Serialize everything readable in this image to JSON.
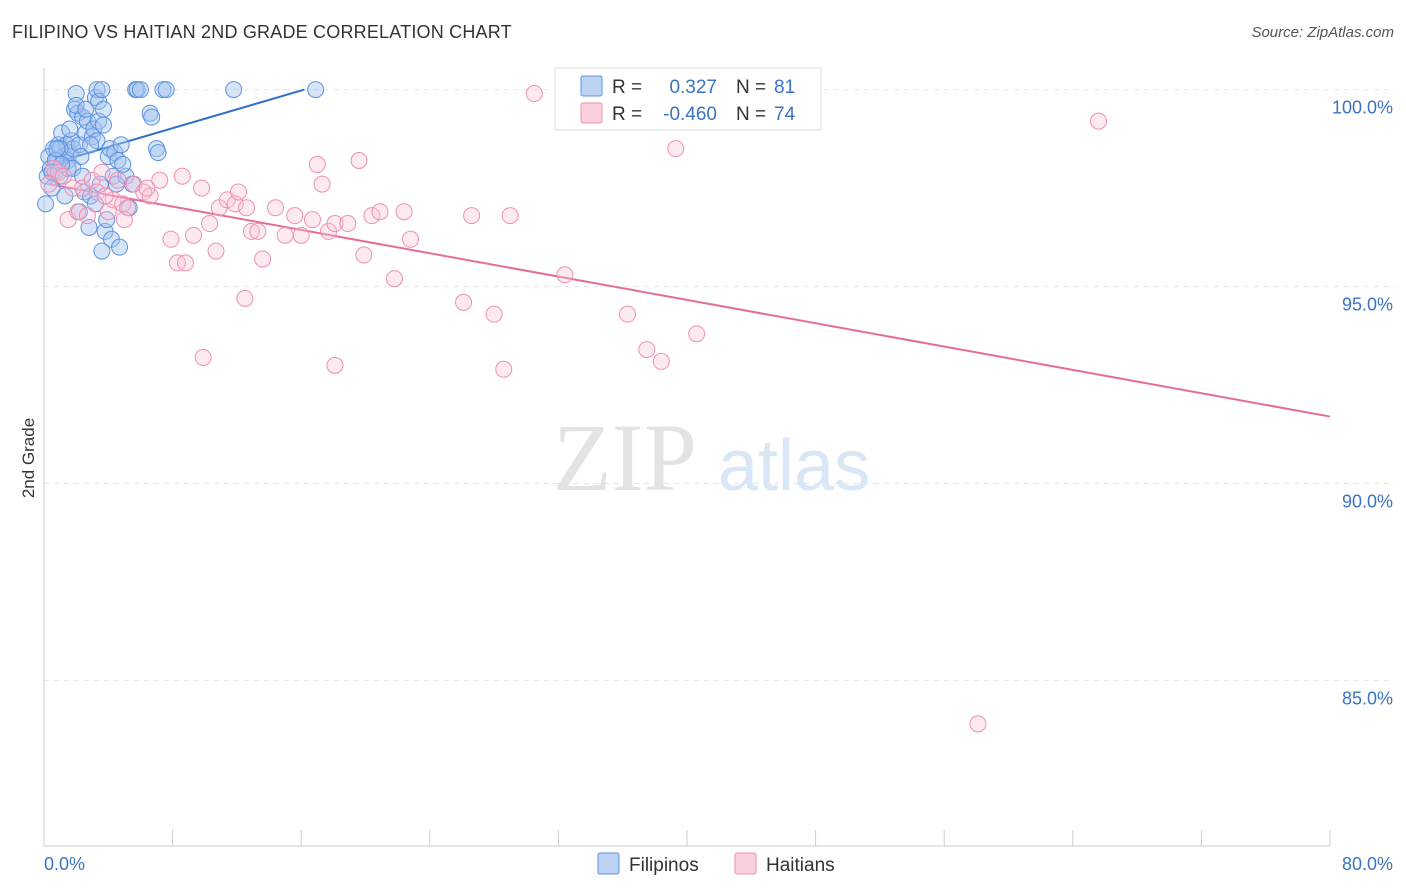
{
  "header": {
    "title": "FILIPINO VS HAITIAN 2ND GRADE CORRELATION CHART",
    "source": "Source: ZipAtlas.com"
  },
  "watermark": {
    "zip": "ZIP",
    "atlas": "atlas"
  },
  "colors": {
    "filipinos": "#5b93e0",
    "filipinos_line": "#2f6fcc",
    "haitians": "#ef8fb0",
    "haitians_line": "#e46d98",
    "tick_text": "#3b73c4"
  },
  "stats_legend": {
    "rows": [
      {
        "r_label": "R =",
        "r_value": "0.327",
        "n_label": "N =",
        "n_value": "81"
      },
      {
        "r_label": "R =",
        "r_value": "-0.460",
        "n_label": "N =",
        "n_value": "74"
      }
    ]
  },
  "chart_data": {
    "type": "scatter",
    "title": "FILIPINO VS HAITIAN 2ND GRADE CORRELATION CHART",
    "xlabel": "",
    "ylabel": "2nd Grade",
    "xlim": [
      0,
      80
    ],
    "ylim": [
      80.8,
      100.7
    ],
    "x_tick_labels": [
      "0.0%",
      "80.0%"
    ],
    "y_ticks": [
      100,
      95,
      90,
      85
    ],
    "y_tick_labels": [
      "100.0%",
      "95.0%",
      "90.0%",
      "85.0%"
    ],
    "grid": true,
    "legend_position": "bottom-center",
    "series": [
      {
        "name": "Filipinos",
        "r": 0.327,
        "n": 81,
        "trend": [
          [
            0.3,
            98.1
          ],
          [
            16.2,
            100.0
          ]
        ],
        "points": [
          [
            0.1,
            97.1
          ],
          [
            0.2,
            97.8
          ],
          [
            0.3,
            98.3
          ],
          [
            0.4,
            98.0
          ],
          [
            0.5,
            97.5
          ],
          [
            0.6,
            98.5
          ],
          [
            0.7,
            97.9
          ],
          [
            0.8,
            98.2
          ],
          [
            0.9,
            98.6
          ],
          [
            1.0,
            97.8
          ],
          [
            1.1,
            98.9
          ],
          [
            1.2,
            98.3
          ],
          [
            1.3,
            97.3
          ],
          [
            1.4,
            98.6
          ],
          [
            1.5,
            98.2
          ],
          [
            1.6,
            98.4
          ],
          [
            1.7,
            98.7
          ],
          [
            1.8,
            98.5
          ],
          [
            1.9,
            99.5
          ],
          [
            2.0,
            99.9
          ],
          [
            2.1,
            99.4
          ],
          [
            2.2,
            98.6
          ],
          [
            2.3,
            98.3
          ],
          [
            2.4,
            99.3
          ],
          [
            2.5,
            97.4
          ],
          [
            2.6,
            98.9
          ],
          [
            2.7,
            99.2
          ],
          [
            2.8,
            96.5
          ],
          [
            2.9,
            97.3
          ],
          [
            3.0,
            98.8
          ],
          [
            3.1,
            99.0
          ],
          [
            3.2,
            99.8
          ],
          [
            3.3,
            98.7
          ],
          [
            3.4,
            99.2
          ],
          [
            3.5,
            97.6
          ],
          [
            3.6,
            95.9
          ],
          [
            3.7,
            99.1
          ],
          [
            3.8,
            96.4
          ],
          [
            3.9,
            96.7
          ],
          [
            4.0,
            98.3
          ],
          [
            4.1,
            98.5
          ],
          [
            4.2,
            96.2
          ],
          [
            4.3,
            97.8
          ],
          [
            4.4,
            98.4
          ],
          [
            4.5,
            97.6
          ],
          [
            4.6,
            98.2
          ],
          [
            4.7,
            96.0
          ],
          [
            4.8,
            98.6
          ],
          [
            5.1,
            97.8
          ],
          [
            5.3,
            97.0
          ],
          [
            5.5,
            97.6
          ],
          [
            5.7,
            100.0
          ],
          [
            5.8,
            100.0
          ],
          [
            6.0,
            100.0
          ],
          [
            6.6,
            99.4
          ],
          [
            7.0,
            98.5
          ],
          [
            7.4,
            100.0
          ],
          [
            7.6,
            100.0
          ],
          [
            11.8,
            100.0
          ],
          [
            16.9,
            100.0
          ],
          [
            2.0,
            99.6
          ],
          [
            2.6,
            99.5
          ],
          [
            3.3,
            100.0
          ],
          [
            3.4,
            99.7
          ],
          [
            3.6,
            100.0
          ],
          [
            1.5,
            98.0
          ],
          [
            1.0,
            98.5
          ],
          [
            0.7,
            98.2
          ],
          [
            0.5,
            97.9
          ],
          [
            1.8,
            98.0
          ],
          [
            2.9,
            98.6
          ],
          [
            3.7,
            99.5
          ],
          [
            4.9,
            98.1
          ],
          [
            2.2,
            96.9
          ],
          [
            3.2,
            97.1
          ],
          [
            6.7,
            99.3
          ],
          [
            7.1,
            98.4
          ],
          [
            1.1,
            98.1
          ],
          [
            2.4,
            97.8
          ],
          [
            0.8,
            98.5
          ],
          [
            1.6,
            99.0
          ]
        ]
      },
      {
        "name": "Haitians",
        "r": -0.46,
        "n": 74,
        "trend": [
          [
            0.3,
            97.6
          ],
          [
            80.0,
            91.7
          ]
        ],
        "points": [
          [
            0.3,
            97.6
          ],
          [
            0.6,
            98.0
          ],
          [
            0.9,
            97.9
          ],
          [
            1.2,
            97.8
          ],
          [
            1.5,
            96.7
          ],
          [
            1.8,
            97.5
          ],
          [
            2.1,
            96.9
          ],
          [
            2.4,
            97.5
          ],
          [
            2.7,
            96.8
          ],
          [
            3.0,
            97.7
          ],
          [
            3.3,
            97.4
          ],
          [
            3.6,
            97.9
          ],
          [
            4.0,
            96.9
          ],
          [
            4.3,
            97.2
          ],
          [
            4.6,
            97.7
          ],
          [
            4.9,
            97.1
          ],
          [
            5.2,
            97.0
          ],
          [
            5.6,
            97.6
          ],
          [
            6.2,
            97.4
          ],
          [
            6.6,
            97.3
          ],
          [
            7.2,
            97.7
          ],
          [
            7.9,
            96.2
          ],
          [
            8.3,
            95.6
          ],
          [
            8.6,
            97.8
          ],
          [
            8.8,
            95.6
          ],
          [
            9.3,
            96.3
          ],
          [
            9.8,
            97.5
          ],
          [
            10.3,
            96.6
          ],
          [
            10.7,
            95.9
          ],
          [
            10.9,
            97.0
          ],
          [
            11.4,
            97.2
          ],
          [
            11.9,
            97.1
          ],
          [
            12.1,
            97.4
          ],
          [
            12.6,
            97.0
          ],
          [
            12.9,
            96.4
          ],
          [
            13.3,
            96.4
          ],
          [
            13.6,
            95.7
          ],
          [
            14.4,
            97.0
          ],
          [
            15.0,
            96.3
          ],
          [
            15.6,
            96.8
          ],
          [
            16.0,
            96.3
          ],
          [
            16.7,
            96.7
          ],
          [
            17.0,
            98.1
          ],
          [
            17.3,
            97.6
          ],
          [
            17.7,
            96.4
          ],
          [
            18.1,
            96.6
          ],
          [
            18.9,
            96.6
          ],
          [
            19.6,
            98.2
          ],
          [
            19.9,
            95.8
          ],
          [
            20.4,
            96.8
          ],
          [
            20.9,
            96.9
          ],
          [
            21.8,
            95.2
          ],
          [
            22.4,
            96.9
          ],
          [
            22.8,
            96.2
          ],
          [
            26.1,
            94.6
          ],
          [
            26.6,
            96.8
          ],
          [
            28.0,
            94.3
          ],
          [
            28.6,
            92.9
          ],
          [
            29.0,
            96.8
          ],
          [
            30.5,
            99.9
          ],
          [
            32.4,
            95.3
          ],
          [
            36.3,
            94.3
          ],
          [
            37.5,
            93.4
          ],
          [
            38.4,
            93.1
          ],
          [
            39.3,
            98.5
          ],
          [
            40.6,
            93.8
          ],
          [
            65.6,
            99.2
          ],
          [
            58.1,
            83.9
          ],
          [
            9.9,
            93.2
          ],
          [
            12.5,
            94.7
          ],
          [
            18.1,
            93.0
          ],
          [
            6.4,
            97.5
          ],
          [
            3.8,
            97.3
          ],
          [
            5.0,
            96.7
          ]
        ]
      }
    ]
  },
  "legend": {
    "items": [
      {
        "label": "Filipinos"
      },
      {
        "label": "Haitians"
      }
    ]
  }
}
